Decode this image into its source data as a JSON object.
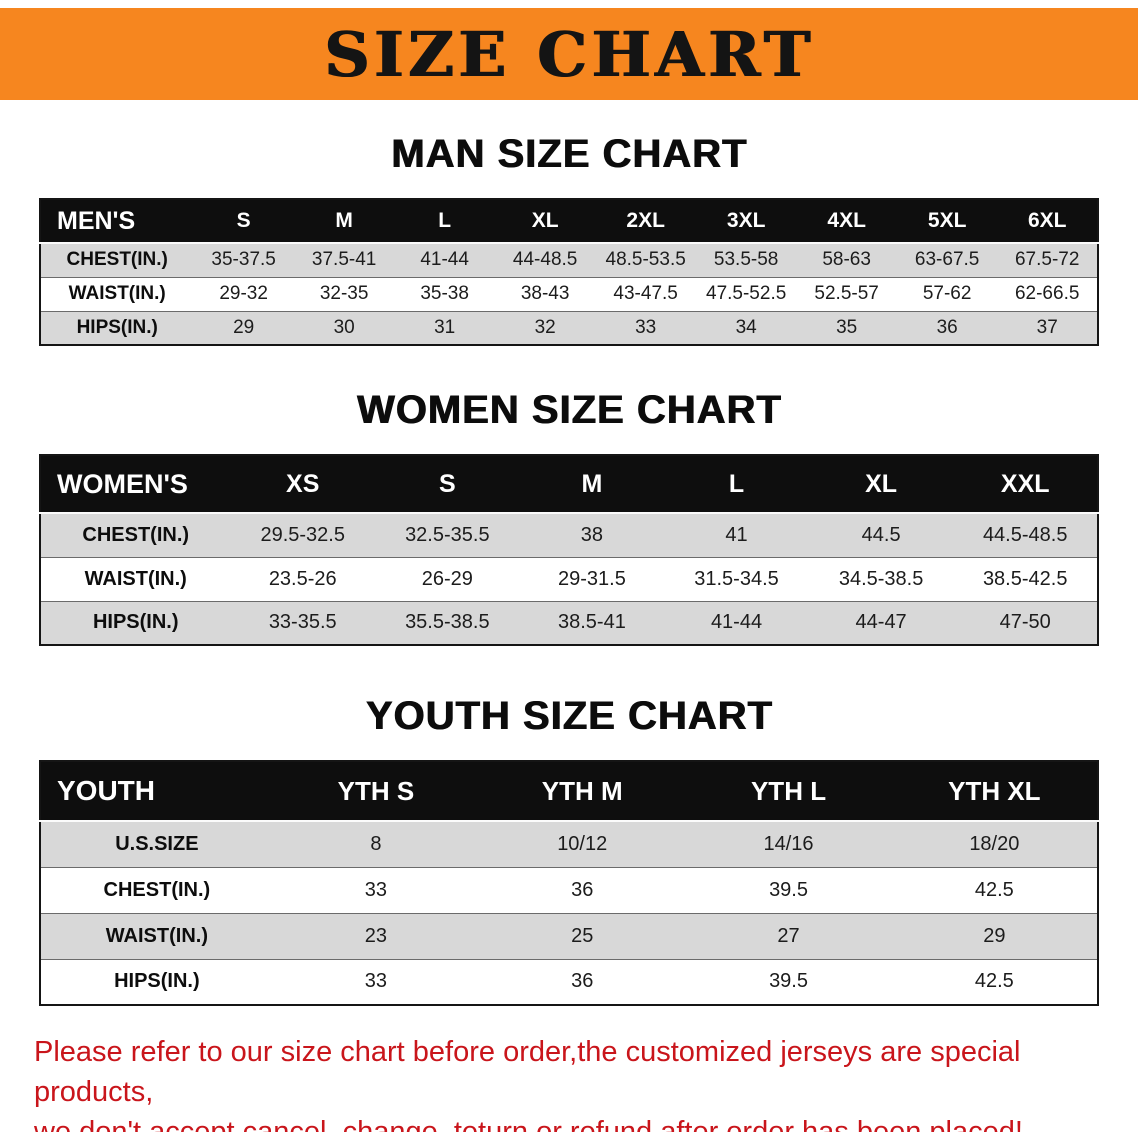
{
  "banner": {
    "title": "SIZE CHART",
    "bg_color": "#f6861f"
  },
  "sections": [
    {
      "heading": "MAN SIZE CHART",
      "table": {
        "corner": "MEN'S",
        "columns": [
          "S",
          "M",
          "L",
          "XL",
          "2XL",
          "3XL",
          "4XL",
          "5XL",
          "6XL"
        ],
        "rows": [
          {
            "label": "CHEST(IN.)",
            "values": [
              "35-37.5",
              "37.5-41",
              "41-44",
              "44-48.5",
              "48.5-53.5",
              "53.5-58",
              "58-63",
              "63-67.5",
              "67.5-72"
            ]
          },
          {
            "label": "WAIST(IN.)",
            "values": [
              "29-32",
              "32-35",
              "35-38",
              "38-43",
              "43-47.5",
              "47.5-52.5",
              "52.5-57",
              "57-62",
              "62-66.5"
            ]
          },
          {
            "label": "HIPS(IN.)",
            "values": [
              "29",
              "30",
              "31",
              "32",
              "33",
              "34",
              "35",
              "36",
              "37"
            ]
          }
        ]
      }
    },
    {
      "heading": "WOMEN SIZE CHART",
      "table": {
        "corner": "WOMEN'S",
        "columns": [
          "XS",
          "S",
          "M",
          "L",
          "XL",
          "XXL"
        ],
        "rows": [
          {
            "label": "CHEST(IN.)",
            "values": [
              "29.5-32.5",
              "32.5-35.5",
              "38",
              "41",
              "44.5",
              "44.5-48.5"
            ]
          },
          {
            "label": "WAIST(IN.)",
            "values": [
              "23.5-26",
              "26-29",
              "29-31.5",
              "31.5-34.5",
              "34.5-38.5",
              "38.5-42.5"
            ]
          },
          {
            "label": "HIPS(IN.)",
            "values": [
              "33-35.5",
              "35.5-38.5",
              "38.5-41",
              "41-44",
              "44-47",
              "47-50"
            ]
          }
        ]
      }
    },
    {
      "heading": "YOUTH SIZE CHART",
      "table": {
        "corner": "YOUTH",
        "columns": [
          "YTH S",
          "YTH M",
          "YTH L",
          "YTH XL"
        ],
        "rows": [
          {
            "label": "U.S.SIZE",
            "values": [
              "8",
              "10/12",
              "14/16",
              "18/20"
            ]
          },
          {
            "label": "CHEST(IN.)",
            "values": [
              "33",
              "36",
              "39.5",
              "42.5"
            ]
          },
          {
            "label": "WAIST(IN.)",
            "values": [
              "23",
              "25",
              "27",
              "29"
            ]
          },
          {
            "label": "HIPS(IN.)",
            "values": [
              "33",
              "36",
              "39.5",
              "42.5"
            ]
          }
        ]
      }
    }
  ],
  "disclaimer": {
    "line1": "Please refer to our size chart before order,the customized jerseys are special products,",
    "line2": "we don't accept cancel, change, teturn or refund after order has been placed!",
    "text_color": "#c9151b"
  },
  "colors": {
    "banner_orange": "#f6861f",
    "table_header_black": "#0e0e0e",
    "row_shade_gray": "#d8d8d8"
  }
}
